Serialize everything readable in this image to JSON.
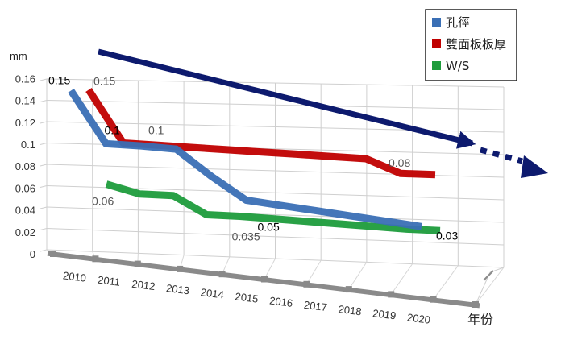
{
  "chart_data": {
    "type": "line",
    "ylabel": "mm",
    "xlabel": "年份",
    "ylim": [
      0,
      0.16
    ],
    "y_ticks": [
      "0",
      "0.02",
      "0.04",
      "0.06",
      "0.08",
      "0.1",
      "0.12",
      "0.14",
      "0.16"
    ],
    "categories": [
      "2010",
      "2011",
      "2012",
      "2013",
      "2014",
      "2015",
      "2016",
      "2017",
      "2018",
      "2019",
      "2020"
    ],
    "series": [
      {
        "name": "孔徑",
        "color": "#3a6fb5",
        "values": [
          0.15,
          0.1,
          0.099,
          0.097,
          0.072,
          0.05,
          0.046,
          0.042,
          0.038,
          0.034,
          0.03
        ]
      },
      {
        "name": "雙面板板厚",
        "color": "#c00000",
        "values": [
          0.15,
          0.1,
          0.099,
          0.098,
          0.097,
          0.096,
          0.095,
          0.094,
          0.093,
          0.08,
          0.08
        ]
      },
      {
        "name": "W/S",
        "color": "#1e9c3c",
        "values": [
          0.06,
          0.052,
          0.052,
          0.035,
          0.035,
          0.034,
          0.033,
          0.032,
          0.031,
          0.03,
          0.03
        ]
      }
    ],
    "data_labels": [
      {
        "text": "0.15",
        "series": 0,
        "index": 0,
        "color": "#000000"
      },
      {
        "text": "0.1",
        "series": 0,
        "index": 1,
        "color": "#000000"
      },
      {
        "text": "0.05",
        "series": 0,
        "index": 5,
        "color": "#000000"
      },
      {
        "text": "0.03",
        "series": 0,
        "index": 10,
        "color": "#000000"
      },
      {
        "text": "0.15",
        "series": 1,
        "index": 0,
        "color": "#555555"
      },
      {
        "text": "0.1",
        "series": 1,
        "index": 2,
        "color": "#555555"
      },
      {
        "text": "0.08",
        "series": 1,
        "index": 10,
        "color": "#555555"
      },
      {
        "text": "0.06",
        "series": 2,
        "index": 0,
        "color": "#555555"
      },
      {
        "text": "0.035",
        "series": 2,
        "index": 4,
        "color": "#555555"
      }
    ],
    "legend": {
      "position": "top-right"
    },
    "grid": true,
    "trend_arrow": {
      "color": "#0d1a6e"
    }
  }
}
